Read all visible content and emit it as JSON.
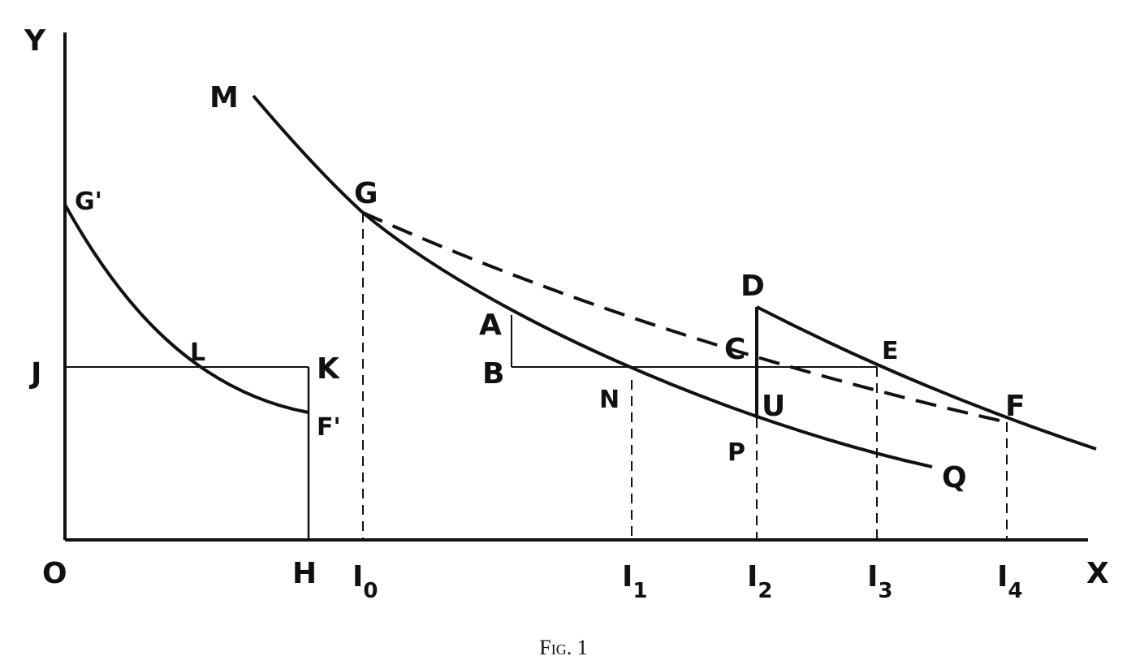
{
  "figure": {
    "labels": {
      "Y": "Y",
      "M": "M",
      "G_prime": "G'",
      "G": "G",
      "D": "D",
      "A": "A",
      "C": "C",
      "E": "E",
      "L": "L",
      "K": "K",
      "J": "J",
      "B": "B",
      "N": "N",
      "U": "U",
      "F_prime": "F'",
      "F": "F",
      "P": "P",
      "Q": "Q",
      "O": "O",
      "H": "H",
      "X": "X"
    },
    "income_labels": [
      {
        "text": "I",
        "sub": "0"
      },
      {
        "text": "I",
        "sub": "1"
      },
      {
        "text": "I",
        "sub": "2"
      },
      {
        "text": "I",
        "sub": "3"
      },
      {
        "text": "I",
        "sub": "4"
      }
    ],
    "caption": "Fig. 1"
  }
}
